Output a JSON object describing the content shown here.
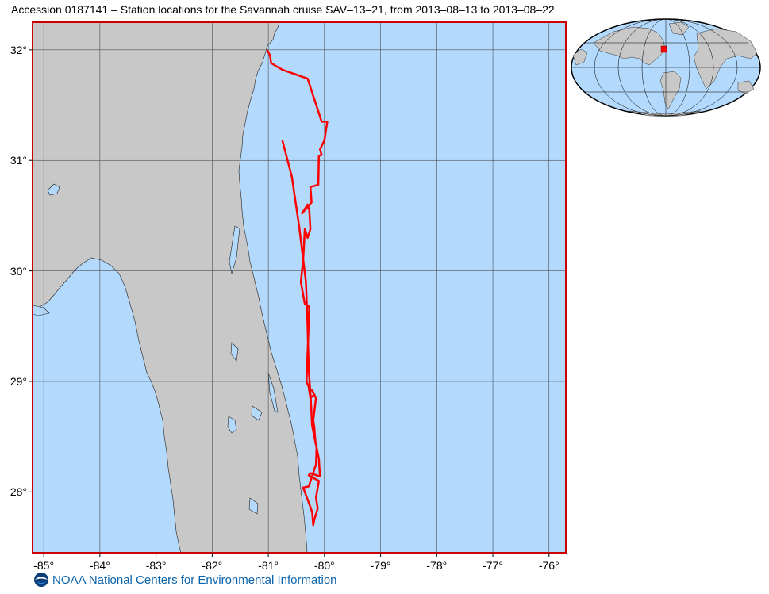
{
  "title": "Accession 0187141 – Station locations for the Savannah cruise SAV–13–21, from 2013–08–13 to 2013–08–22",
  "credit": "NOAA National Centers for Environmental Information",
  "colors": {
    "ocean": "#b3d9fc",
    "land": "#c8c8c8",
    "track": "#ff0000",
    "frame": "#cc0000",
    "grid": "#333333"
  },
  "map": {
    "lon_range": [
      -85.2,
      -75.7
    ],
    "lat_range": [
      27.45,
      32.25
    ],
    "x_ticks": [
      {
        "value": -85,
        "label": "-85°"
      },
      {
        "value": -84,
        "label": "-84°"
      },
      {
        "value": -83,
        "label": "-83°"
      },
      {
        "value": -82,
        "label": "-82°"
      },
      {
        "value": -81,
        "label": "-81°"
      },
      {
        "value": -80,
        "label": "-80°"
      },
      {
        "value": -79,
        "label": "-79°"
      },
      {
        "value": -78,
        "label": "-78°"
      },
      {
        "value": -77,
        "label": "-77°"
      },
      {
        "value": -76,
        "label": "-76°"
      }
    ],
    "y_ticks": [
      {
        "value": 32,
        "label": "32°"
      },
      {
        "value": 31,
        "label": "31°"
      },
      {
        "value": 30,
        "label": "30°"
      },
      {
        "value": 29,
        "label": "29°"
      },
      {
        "value": 28,
        "label": "28°"
      }
    ]
  },
  "track": [
    [
      -81.02,
      32.0
    ],
    [
      -80.97,
      31.95
    ],
    [
      -80.95,
      31.88
    ],
    [
      -80.75,
      31.82
    ],
    [
      -80.3,
      31.74
    ],
    [
      -80.05,
      31.35
    ],
    [
      -79.95,
      31.35
    ],
    [
      -80.0,
      31.18
    ],
    [
      -80.08,
      31.1
    ],
    [
      -80.05,
      31.05
    ],
    [
      -80.1,
      31.04
    ],
    [
      -80.11,
      30.78
    ],
    [
      -80.25,
      30.76
    ],
    [
      -80.23,
      30.62
    ],
    [
      -80.4,
      30.52
    ],
    [
      -80.3,
      30.6
    ],
    [
      -80.27,
      30.55
    ],
    [
      -80.25,
      30.38
    ],
    [
      -80.3,
      30.3
    ],
    [
      -80.35,
      30.38
    ],
    [
      -80.38,
      30.1
    ],
    [
      -80.42,
      29.9
    ],
    [
      -80.35,
      29.7
    ],
    [
      -80.28,
      29.68
    ],
    [
      -80.27,
      29.65
    ],
    [
      -80.32,
      29.0
    ],
    [
      -80.28,
      28.95
    ],
    [
      -80.25,
      28.85
    ],
    [
      -80.18,
      28.88
    ],
    [
      -80.22,
      28.92
    ],
    [
      -80.15,
      28.85
    ],
    [
      -80.2,
      28.65
    ],
    [
      -80.18,
      28.58
    ],
    [
      -80.16,
      28.45
    ],
    [
      -80.1,
      28.3
    ],
    [
      -80.08,
      28.14
    ],
    [
      -80.25,
      28.17
    ],
    [
      -80.28,
      28.15
    ],
    [
      -80.1,
      28.1
    ],
    [
      -80.15,
      27.95
    ],
    [
      -80.12,
      27.85
    ],
    [
      -80.18,
      27.75
    ],
    [
      -80.2,
      27.7
    ],
    [
      -80.22,
      27.82
    ],
    [
      -80.38,
      28.04
    ],
    [
      -80.28,
      28.05
    ],
    [
      -80.15,
      28.25
    ],
    [
      -80.14,
      28.4
    ],
    [
      -80.22,
      28.6
    ],
    [
      -80.25,
      28.9
    ],
    [
      -80.28,
      29.1
    ],
    [
      -80.3,
      29.5
    ],
    [
      -80.33,
      29.9
    ],
    [
      -80.45,
      30.4
    ],
    [
      -80.58,
      30.85
    ],
    [
      -80.75,
      31.18
    ]
  ],
  "globe": {
    "marker_lon": -80.5,
    "marker_lat": 29.9
  }
}
